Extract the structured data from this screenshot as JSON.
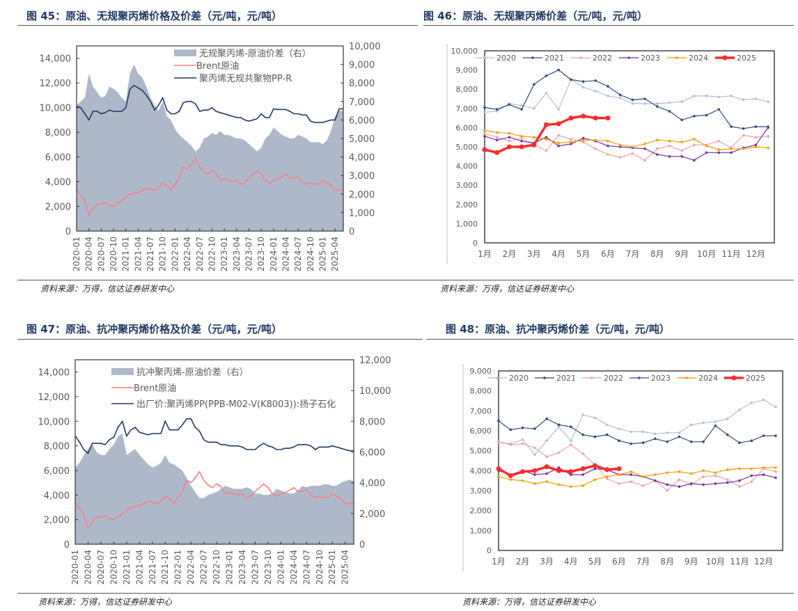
{
  "figures": [
    {
      "title": "图 45：原油、无规聚丙烯价格及价差（元/吨，元/吨）",
      "source": "资料来源：万得，信达证券研发中心"
    },
    {
      "title": "图 46：原油、无规聚丙烯价差（元/吨，元/吨）",
      "source": "资料来源：万得，信达证券研发中心"
    },
    {
      "title": "图 47：原油、抗冲聚丙烯价格及价差（元/吨，元/吨）",
      "source": "资料来源：万得，信达证券研发中心"
    },
    {
      "title": "图 48：原油、抗冲聚丙烯价差（元/吨，元/吨）",
      "source": "资料来源：万得，信达证券研发中心"
    }
  ],
  "chart_data": [
    {
      "type": "line+area",
      "x_start": "2020-01",
      "frequency": "monthly",
      "x_tick_labels": [
        "2020-01",
        "2020-04",
        "2020-07",
        "2020-10",
        "2021-01",
        "2021-04",
        "2021-07",
        "2021-10",
        "2022-01",
        "2022-04",
        "2022-07",
        "2022-10",
        "2023-01",
        "2023-04",
        "2023-07",
        "2023-10",
        "2024-01",
        "2024-04",
        "2024-07",
        "2024-10",
        "2025-01",
        "2025-04"
      ],
      "ylim_left": [
        0,
        15000
      ],
      "ylim_right": [
        0,
        10000
      ],
      "y_ticks_left": [
        "0",
        "2,000",
        "4,000",
        "6,000",
        "8,000",
        "10,000",
        "12,000",
        "14,000"
      ],
      "y_ticks_right": [
        "0",
        "1,000",
        "2,000",
        "3,000",
        "4,000",
        "5,000",
        "6,000",
        "7,000",
        "8,000",
        "9,000",
        "10,000"
      ],
      "legend_position": "top-right",
      "series": [
        {
          "name": "无规聚丙烯-原油价差（右）",
          "kind": "area",
          "axis": "right",
          "color": "#adb9ca",
          "values": [
            6800,
            7000,
            7200,
            8500,
            7800,
            7500,
            7200,
            7300,
            7800,
            7700,
            7500,
            7200,
            7000,
            8500,
            9000,
            8500,
            8300,
            7800,
            7200,
            6800,
            6500,
            7000,
            6200,
            6000,
            5500,
            5200,
            5000,
            4800,
            4600,
            4300,
            4500,
            5000,
            5100,
            5300,
            5200,
            5400,
            5200,
            5200,
            5100,
            5000,
            5000,
            4900,
            4700,
            4500,
            4300,
            4500,
            5000,
            5200,
            5600,
            5400,
            5200,
            5100,
            5000,
            5000,
            5200,
            5100,
            5000,
            4800,
            4800,
            4800,
            4700,
            4900,
            5400,
            6200,
            6500,
            6500
          ]
        },
        {
          "name": "Brent原油",
          "kind": "line",
          "axis": "left",
          "color": "#ff7c80",
          "values": [
            3400,
            2900,
            2500,
            1300,
            1800,
            2200,
            2200,
            2300,
            2100,
            2000,
            2200,
            2500,
            2700,
            3000,
            3100,
            3100,
            3300,
            3500,
            3400,
            3300,
            3500,
            3900,
            3700,
            3300,
            3800,
            4300,
            5200,
            5000,
            5400,
            5900,
            5200,
            4800,
            4600,
            4900,
            4700,
            4100,
            4200,
            4100,
            4000,
            4100,
            3800,
            3900,
            4300,
            4600,
            4900,
            4600,
            4100,
            3900,
            4100,
            4200,
            4400,
            4600,
            4300,
            4300,
            4400,
            4000,
            3800,
            3900,
            3800,
            3800,
            4100,
            3900,
            3700,
            3300,
            3300,
            3400
          ]
        },
        {
          "name": "聚丙烯无规共聚物PP-R",
          "kind": "line",
          "axis": "left",
          "color": "#203864",
          "values": [
            10100,
            10000,
            9500,
            9000,
            9700,
            9700,
            9500,
            9600,
            9800,
            9700,
            9700,
            9700,
            10000,
            11500,
            11800,
            11600,
            11400,
            11000,
            10500,
            9800,
            10200,
            10800,
            9800,
            9500,
            9500,
            9700,
            10400,
            10500,
            10500,
            10300,
            9700,
            9800,
            9800,
            10000,
            9700,
            9600,
            9500,
            9400,
            9300,
            9200,
            9200,
            9000,
            8900,
            9000,
            9100,
            9500,
            9200,
            9200,
            9900,
            9850,
            9850,
            9850,
            9700,
            9500,
            9500,
            9400,
            9400,
            8900,
            8800,
            8800,
            8800,
            8900,
            9000,
            9000,
            9900,
            9900
          ]
        }
      ]
    },
    {
      "type": "line",
      "x_tick_labels": [
        "1月",
        "2月",
        "3月",
        "4月",
        "5月",
        "6月",
        "7月",
        "8月",
        "9月",
        "10月",
        "11月",
        "12月"
      ],
      "x_unit": "month (half-month sampling from 1月)",
      "ylim": [
        0,
        10000
      ],
      "y_ticks": [
        "0",
        "1,000",
        "2,000",
        "3,000",
        "4,000",
        "5,000",
        "6,000",
        "7,000",
        "8,000",
        "9,000",
        "10,000"
      ],
      "legend_position": "top",
      "series": [
        {
          "name": "2020",
          "color": "#b4bfd3",
          "values": [
            6800,
            6850,
            7250,
            7150,
            7000,
            7800,
            6950,
            8500,
            8100,
            7900,
            7650,
            7550,
            7250,
            7250,
            7250,
            7300,
            7350,
            7650,
            7650,
            7600,
            7650,
            7450,
            7500,
            7350
          ]
        },
        {
          "name": "2021",
          "color": "#2f4a7a",
          "values": [
            7050,
            6950,
            7200,
            6950,
            8250,
            8700,
            9000,
            8500,
            8400,
            8450,
            8150,
            7700,
            7450,
            7500,
            7100,
            6850,
            6400,
            6600,
            6650,
            6950,
            6050,
            5950,
            6050,
            6050
          ]
        },
        {
          "name": "2022",
          "color": "#f4a0a8",
          "values": [
            5700,
            5500,
            5300,
            5450,
            5100,
            4800,
            5600,
            5400,
            5250,
            4900,
            4600,
            4450,
            4650,
            4300,
            4900,
            5050,
            4800,
            5100,
            5100,
            5300,
            4950,
            5600,
            5500,
            5550
          ]
        },
        {
          "name": "2023",
          "color": "#7030a0",
          "values": [
            5550,
            5350,
            5500,
            5300,
            5200,
            5500,
            5050,
            5150,
            5450,
            5300,
            5050,
            5000,
            4950,
            4900,
            4600,
            4500,
            4500,
            4300,
            4700,
            4700,
            4700,
            4950,
            5100,
            6000
          ]
        },
        {
          "name": "2024",
          "color": "#ff9900",
          "values": [
            5850,
            5750,
            5700,
            5550,
            5500,
            5400,
            5200,
            5250,
            5350,
            5350,
            5300,
            5100,
            5000,
            5150,
            5350,
            5300,
            5250,
            5400,
            5050,
            4850,
            4900,
            4900,
            5000,
            4950
          ]
        },
        {
          "name": "2025",
          "color": "#ff2a2a",
          "values": [
            4850,
            4700,
            5000,
            5000,
            5100,
            6150,
            6200,
            6500,
            6600,
            6500,
            6500
          ]
        }
      ]
    },
    {
      "type": "line+area",
      "x_start": "2020-01",
      "frequency": "monthly",
      "x_tick_labels": [
        "2020-01",
        "2020-04",
        "2020-07",
        "2020-10",
        "2021-01",
        "2021-04",
        "2021-07",
        "2021-10",
        "2022-01",
        "2022-04",
        "2022-07",
        "2022-10",
        "2023-01",
        "2023-04",
        "2023-07",
        "2023-10",
        "2024-01",
        "2024-04",
        "2024-07",
        "2024-10",
        "2025-01",
        "2025-04"
      ],
      "ylim_left": [
        0,
        15000
      ],
      "ylim_right": [
        0,
        12000
      ],
      "y_ticks_left": [
        "0",
        "2,000",
        "4,000",
        "6,000",
        "8,000",
        "10,000",
        "12,000",
        "14,000"
      ],
      "y_ticks_right": [
        "0",
        "2,000",
        "4,000",
        "6,000",
        "8,000",
        "10,000",
        "12,000"
      ],
      "legend_position": "top",
      "series": [
        {
          "name": "抗冲聚丙烯-原油价差（右）",
          "kind": "area",
          "axis": "right",
          "color": "#adb9ca",
          "values": [
            5000,
            5300,
            5800,
            6200,
            6500,
            6000,
            5800,
            5800,
            6200,
            6500,
            7000,
            7200,
            5800,
            6000,
            6200,
            5800,
            5500,
            5200,
            5000,
            5100,
            5300,
            5800,
            5300,
            5200,
            5000,
            4800,
            4300,
            3800,
            3400,
            3000,
            3000,
            3200,
            3300,
            3400,
            3600,
            3800,
            3700,
            3600,
            3600,
            3600,
            3700,
            3600,
            3300,
            3300,
            3200,
            3200,
            3300,
            3600,
            3500,
            3400,
            3300,
            3300,
            3500,
            3800,
            3700,
            3800,
            3800,
            3800,
            3900,
            3900,
            3800,
            3800,
            4000,
            4100,
            4200,
            4100
          ]
        },
        {
          "name": "Brent原油",
          "kind": "line",
          "axis": "left",
          "color": "#ff7c80",
          "values": [
            3400,
            2900,
            2500,
            1300,
            1800,
            2200,
            2200,
            2300,
            2100,
            2000,
            2200,
            2500,
            2700,
            3000,
            3100,
            3100,
            3300,
            3500,
            3400,
            3300,
            3500,
            3900,
            3700,
            3300,
            3800,
            4300,
            5200,
            5000,
            5400,
            5900,
            5200,
            4800,
            4600,
            4900,
            4700,
            4100,
            4200,
            4100,
            4000,
            4100,
            3800,
            3900,
            4300,
            4600,
            4900,
            4600,
            4100,
            3900,
            4100,
            4200,
            4400,
            4600,
            4300,
            4300,
            4400,
            4000,
            3800,
            3900,
            3800,
            3800,
            4100,
            3900,
            3700,
            3300,
            3300,
            3400
          ]
        },
        {
          "name": "出厂价:聚丙烯PP(PPB-M02-V(K8003)):扬子石化",
          "kind": "line",
          "axis": "left",
          "color": "#203864",
          "values": [
            8800,
            8300,
            7700,
            7400,
            8200,
            8200,
            8200,
            8100,
            8500,
            8700,
            9500,
            10000,
            8800,
            9300,
            9500,
            9100,
            9000,
            8900,
            9000,
            9000,
            9000,
            10000,
            9300,
            9300,
            9300,
            9700,
            10200,
            10200,
            9500,
            9200,
            8500,
            8300,
            8300,
            8300,
            8100,
            8100,
            8000,
            8000,
            8000,
            7900,
            7700,
            7700,
            7700,
            8000,
            8200,
            8000,
            7900,
            7700,
            7700,
            7800,
            7800,
            7900,
            8100,
            8100,
            8100,
            8000,
            7700,
            7900,
            7900,
            7900,
            8000,
            7900,
            7800,
            7700,
            7600,
            7600
          ]
        }
      ]
    },
    {
      "type": "line",
      "x_tick_labels": [
        "1月",
        "2月",
        "3月",
        "4月",
        "5月",
        "6月",
        "7月",
        "8月",
        "9月",
        "10月",
        "11月",
        "12月"
      ],
      "x_unit": "month (half-month sampling from 1月)",
      "ylim": [
        0,
        9000
      ],
      "y_ticks": [
        "0",
        "1,000",
        "2,000",
        "3,000",
        "4,000",
        "5,000",
        "6,000",
        "7,000",
        "8,000",
        "9,000"
      ],
      "legend_position": "top",
      "series": [
        {
          "name": "2020",
          "color": "#b4bfd3",
          "values": [
            5400,
            5350,
            5550,
            4800,
            5500,
            6200,
            5500,
            6800,
            6650,
            6300,
            6100,
            5950,
            5950,
            5850,
            5900,
            5900,
            6300,
            6400,
            6450,
            6600,
            7050,
            7400,
            7550,
            7200
          ]
        },
        {
          "name": "2021",
          "color": "#2f4a7a",
          "values": [
            6500,
            6050,
            6150,
            6100,
            6600,
            6300,
            6200,
            5800,
            5700,
            5800,
            5500,
            5350,
            5400,
            5600,
            5450,
            5700,
            5450,
            5450,
            6250,
            5800,
            5400,
            5500,
            5750,
            5750
          ]
        },
        {
          "name": "2022",
          "color": "#f4a0a8",
          "values": [
            5450,
            5300,
            5350,
            5150,
            4700,
            4900,
            5300,
            4850,
            4300,
            3600,
            3350,
            3450,
            3250,
            3500,
            3000,
            3550,
            3300,
            3700,
            3750,
            3550,
            3200,
            3450,
            4100,
            3950
          ]
        },
        {
          "name": "2023",
          "color": "#7030a0",
          "values": [
            4000,
            3800,
            4000,
            3800,
            3850,
            4150,
            3800,
            3800,
            4100,
            4050,
            3800,
            3800,
            3700,
            3500,
            3300,
            3200,
            3350,
            3300,
            3350,
            3400,
            3500,
            3750,
            3800,
            3650
          ]
        },
        {
          "name": "2024",
          "color": "#ff9900",
          "values": [
            3700,
            3550,
            3500,
            3350,
            3450,
            3300,
            3200,
            3250,
            3550,
            3700,
            3800,
            3950,
            3700,
            3800,
            3900,
            3950,
            3850,
            4000,
            3900,
            4050,
            4100,
            4100,
            4150,
            4150
          ]
        },
        {
          "name": "2025",
          "color": "#ff2a2a",
          "values": [
            4100,
            3750,
            3950,
            4000,
            4200,
            4000,
            3950,
            4100,
            4250,
            4050,
            4100
          ]
        }
      ]
    }
  ]
}
